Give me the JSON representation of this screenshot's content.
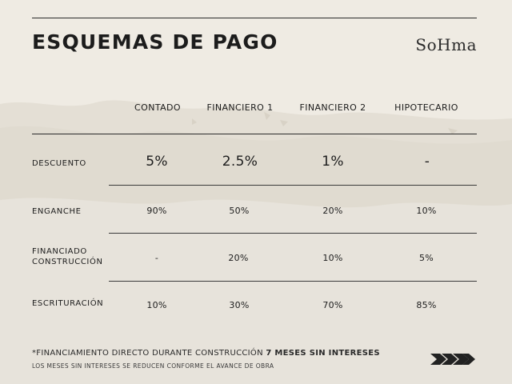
{
  "header": {
    "title": "ESQUEMAS DE PAGO",
    "brand": "SoHma"
  },
  "table": {
    "columns": [
      "CONTADO",
      "FINANCIERO 1",
      "FINANCIERO 2",
      "HIPOTECARIO"
    ],
    "rows": [
      {
        "label": "DESCUENTO",
        "values": [
          "5%",
          "2.5%",
          "1%",
          "-"
        ]
      },
      {
        "label": "ENGANCHE",
        "values": [
          "90%",
          "50%",
          "20%",
          "10%"
        ]
      },
      {
        "label": "FINANCIADO CONSTRUCCIÓN",
        "values": [
          "-",
          "20%",
          "10%",
          "5%"
        ]
      },
      {
        "label": "ESCRITURACIÓN",
        "values": [
          "10%",
          "30%",
          "70%",
          "85%"
        ]
      }
    ]
  },
  "footer": {
    "note_prefix": "*FINANCIAMIENTO DIRECTO DURANTE CONSTRUCCIÓN ",
    "note_emphasis": "7 MESES SIN INTERESES",
    "sub_note": "LOS MESES SIN INTERESES SE REDUCEN CONFORME EL AVANCE DE OBRA",
    "icon": "chevrons-right-icon"
  },
  "colors": {
    "background": "#efebe3",
    "texture": "#e0dbd0",
    "text": "#1c1c1c"
  }
}
